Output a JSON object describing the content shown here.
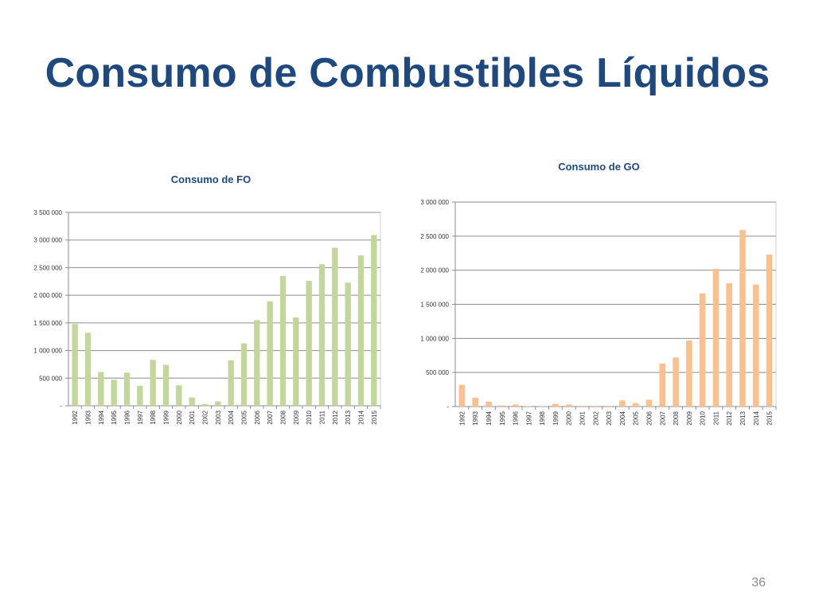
{
  "slide": {
    "title": "Consumo de Combustibles Líquidos",
    "page_number": "36"
  },
  "chart_data": [
    {
      "type": "bar",
      "title": "Consumo de FO",
      "color": "#C3D69B",
      "categories": [
        "1992",
        "1993",
        "1994",
        "1995",
        "1996",
        "1997",
        "1998",
        "1999",
        "2000",
        "2001",
        "2002",
        "2003",
        "2004",
        "2005",
        "2006",
        "2007",
        "2008",
        "2009",
        "2010",
        "2011",
        "2012",
        "2013",
        "2014",
        "2015"
      ],
      "values": [
        1480000,
        1320000,
        610000,
        470000,
        600000,
        360000,
        830000,
        740000,
        370000,
        150000,
        30000,
        80000,
        820000,
        1130000,
        1550000,
        1890000,
        2350000,
        1600000,
        2260000,
        2560000,
        2860000,
        2230000,
        2720000,
        3090000
      ],
      "ylim": [
        0,
        3500000
      ],
      "yticks": [
        0,
        500000,
        1000000,
        1500000,
        2000000,
        2500000,
        3000000,
        3500000
      ],
      "ytick_labels": [
        "-",
        "500 000",
        "1 000 000",
        "1 500 000",
        "2 000 000",
        "2 500 000",
        "3 000 000",
        "3 500 000"
      ],
      "grid": true
    },
    {
      "type": "bar",
      "title": "Consumo de GO",
      "color": "#FAC090",
      "categories": [
        "1992",
        "1993",
        "1994",
        "1995",
        "1996",
        "1997",
        "1998",
        "1999",
        "2000",
        "2001",
        "2002",
        "2003",
        "2004",
        "2005",
        "2006",
        "2007",
        "2008",
        "2009",
        "2010",
        "2011",
        "2012",
        "2013",
        "2014",
        "2015"
      ],
      "values": [
        320000,
        130000,
        70000,
        15000,
        30000,
        5000,
        5000,
        40000,
        30000,
        10000,
        10000,
        10000,
        90000,
        50000,
        100000,
        630000,
        720000,
        970000,
        1660000,
        2020000,
        1810000,
        2590000,
        1790000,
        2230000
      ],
      "ylim": [
        0,
        3000000
      ],
      "yticks": [
        0,
        500000,
        1000000,
        1500000,
        2000000,
        2500000,
        3000000
      ],
      "ytick_labels": [
        "-",
        "500 000",
        "1 000 000",
        "1 500 000",
        "2 000 000",
        "2 500 000",
        "3 000 000"
      ],
      "grid": true
    }
  ]
}
